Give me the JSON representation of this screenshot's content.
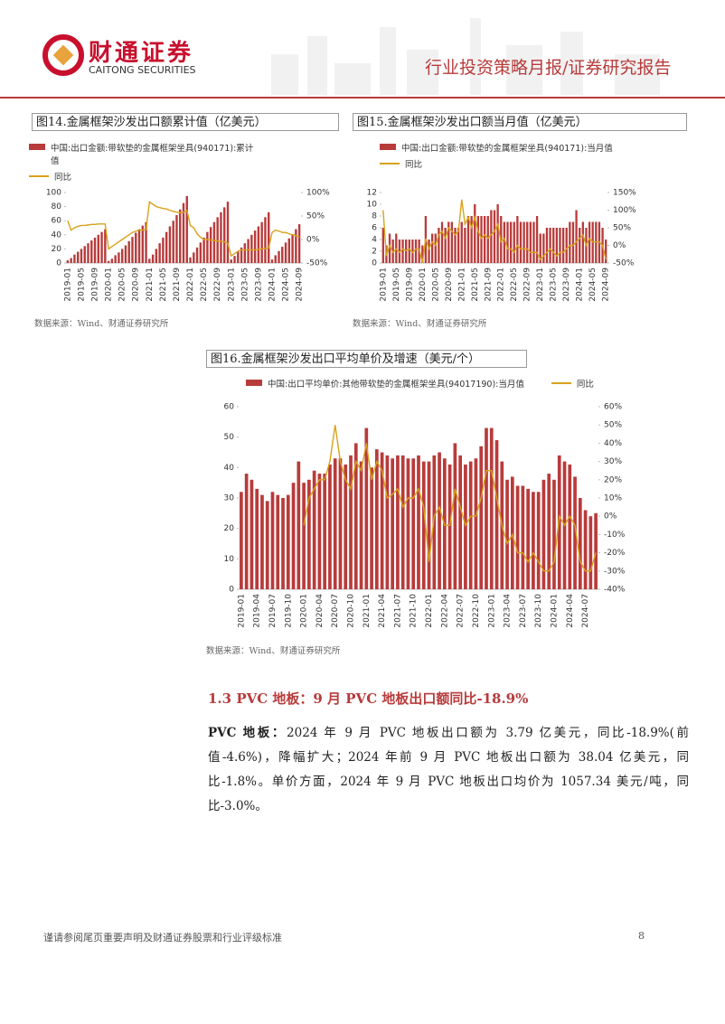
{
  "header": {
    "brand": "财通证券",
    "brand_en": "CAITONG SECURITIES",
    "report_type": "行业投资策略月报/证券研究报告"
  },
  "chart_data": [
    {
      "type": "bar_line",
      "title": "图14.金属框架沙发出口额累计值（亿美元）",
      "source": "数据来源：Wind、财通证券研究所",
      "categories": [
        "2019-01",
        null,
        null,
        null,
        "2019-05",
        null,
        null,
        null,
        "2019-09",
        null,
        null,
        null,
        "2020-01",
        null,
        null,
        null,
        "2020-05",
        null,
        null,
        null,
        "2020-09",
        null,
        null,
        null,
        "2021-01",
        null,
        null,
        null,
        "2021-05",
        null,
        null,
        null,
        "2021-09",
        null,
        null,
        null,
        "2022-01",
        null,
        null,
        null,
        "2022-05",
        null,
        null,
        null,
        "2022-09",
        null,
        null,
        null,
        "2023-01",
        null,
        null,
        null,
        "2023-05",
        null,
        null,
        null,
        "2023-09",
        null,
        null,
        null,
        "2024-01",
        null,
        null,
        null,
        "2024-05",
        null,
        null,
        null,
        "2024-09"
      ],
      "series": [
        {
          "name": "中国:出口金额:带软垫的金属框架坐具(940171):累计值",
          "color": "#b83b3b",
          "values": [
            4,
            7,
            12,
            16,
            20,
            24,
            28,
            32,
            36,
            40,
            44,
            48,
            3,
            6,
            11,
            15,
            20,
            25,
            31,
            37,
            43,
            48,
            53,
            58,
            6,
            12,
            20,
            28,
            36,
            44,
            52,
            60,
            68,
            76,
            85,
            95,
            8,
            15,
            22,
            29,
            36,
            44,
            51,
            58,
            65,
            72,
            79,
            87,
            5,
            10,
            16,
            22,
            28,
            34,
            40,
            46,
            52,
            58,
            65,
            72,
            5,
            11,
            17,
            23,
            29,
            35,
            41,
            48,
            55
          ]
        },
        {
          "name": "同比",
          "color": "#d9a21b",
          "axis": "y2",
          "values": [
            40,
            20,
            25,
            28,
            30,
            30,
            31,
            32,
            32,
            33,
            33,
            33,
            -20,
            -15,
            -10,
            -5,
            0,
            5,
            10,
            15,
            18,
            20,
            20,
            21,
            80,
            75,
            70,
            68,
            66,
            65,
            62,
            60,
            58,
            57,
            58,
            62,
            30,
            25,
            12,
            5,
            0,
            0,
            -1,
            -2,
            -3,
            -4,
            -5,
            -8,
            -35,
            -30,
            -25,
            -22,
            -22,
            -22,
            -22,
            -22,
            -21,
            -20,
            -19,
            -18,
            15,
            20,
            18,
            15,
            15,
            12,
            10,
            8,
            5
          ]
        }
      ],
      "ylim": [
        0,
        100
      ],
      "yticks": [
        0,
        20,
        40,
        60,
        80,
        100
      ],
      "y2lim": [
        -50,
        100
      ],
      "y2ticks": [
        {
          "value": -50,
          "label": "-50%"
        },
        {
          "value": 0,
          "label": "0%"
        },
        {
          "value": 50,
          "label": "50%"
        },
        {
          "value": 100,
          "label": "100%"
        }
      ]
    },
    {
      "type": "bar_line",
      "title": "图15.金属框架沙发出口额当月值（亿美元）",
      "source": "数据来源：Wind、财通证券研究所",
      "categories": [
        "2019-01",
        null,
        null,
        null,
        "2019-05",
        null,
        null,
        null,
        "2019-09",
        null,
        null,
        null,
        "2020-01",
        null,
        null,
        null,
        "2020-05",
        null,
        null,
        null,
        "2020-09",
        null,
        null,
        null,
        "2021-01",
        null,
        null,
        null,
        "2021-05",
        null,
        null,
        null,
        "2021-09",
        null,
        null,
        null,
        "2022-01",
        null,
        null,
        null,
        "2022-05",
        null,
        null,
        null,
        "2022-09",
        null,
        null,
        null,
        "2023-01",
        null,
        null,
        null,
        "2023-05",
        null,
        null,
        null,
        "2023-09",
        null,
        null,
        null,
        "2024-01",
        null,
        null,
        null,
        "2024-05",
        null,
        null,
        null,
        "2024-09"
      ],
      "series": [
        {
          "name": "中国:出口金额:带软垫的金属框架坐具(940171):当月值",
          "color": "#b83b3b",
          "values": [
            6,
            3,
            5,
            4,
            5,
            4,
            4,
            4,
            4,
            4,
            4,
            4,
            3,
            8,
            4,
            5,
            5,
            6,
            7,
            6,
            7,
            7,
            6,
            6,
            7,
            6,
            8,
            8,
            10,
            8,
            8,
            8,
            8,
            9,
            9,
            10,
            8,
            7,
            7,
            7,
            7,
            8,
            7,
            7,
            7,
            7,
            7,
            8,
            5,
            5,
            6,
            6,
            6,
            6,
            6,
            6,
            6,
            7,
            7,
            9,
            6,
            7,
            6,
            7,
            7,
            7,
            7,
            6,
            4
          ]
        },
        {
          "name": "同比",
          "color": "#d9a21b",
          "axis": "y2",
          "values": [
            100,
            -30,
            0,
            -20,
            -10,
            -20,
            -10,
            -15,
            -10,
            -20,
            -10,
            -10,
            -50,
            20,
            -10,
            10,
            0,
            30,
            40,
            20,
            50,
            40,
            30,
            40,
            130,
            60,
            80,
            50,
            80,
            40,
            20,
            30,
            20,
            30,
            40,
            60,
            10,
            20,
            -10,
            -10,
            -20,
            0,
            -10,
            -10,
            -10,
            -20,
            -20,
            -20,
            -40,
            -30,
            -20,
            -10,
            -20,
            -30,
            -20,
            -20,
            -10,
            0,
            0,
            10,
            20,
            30,
            0,
            20,
            10,
            10,
            10,
            0,
            -40
          ]
        }
      ],
      "ylim": [
        0,
        12
      ],
      "yticks": [
        0,
        2,
        4,
        6,
        8,
        10,
        12
      ],
      "y2lim": [
        -50,
        150
      ],
      "y2ticks": [
        {
          "value": -50,
          "label": "-50%"
        },
        {
          "value": 0,
          "label": "0%"
        },
        {
          "value": 50,
          "label": "50%"
        },
        {
          "value": 100,
          "label": "100%"
        },
        {
          "value": 150,
          "label": "150%"
        }
      ]
    },
    {
      "type": "bar_line",
      "title": "图16.金属框架沙发出口平均单价及增速（美元/个）",
      "source": "数据来源：Wind、财通证券研究所",
      "categories": [
        "2019-01",
        null,
        null,
        "2019-04",
        null,
        null,
        "2019-07",
        null,
        null,
        "2019-10",
        null,
        null,
        "2020-01",
        null,
        null,
        "2020-04",
        null,
        null,
        "2020-07",
        null,
        null,
        "2020-10",
        null,
        null,
        "2021-01",
        null,
        null,
        "2021-04",
        null,
        null,
        "2021-07",
        null,
        null,
        "2021-10",
        null,
        null,
        "2022-01",
        null,
        null,
        "2022-04",
        null,
        null,
        "2022-07",
        null,
        null,
        "2022-10",
        null,
        null,
        "2023-01",
        null,
        null,
        "2023-04",
        null,
        null,
        "2023-07",
        null,
        null,
        "2023-10",
        null,
        null,
        "2024-01",
        null,
        null,
        "2024-04",
        null,
        null,
        "2024-07",
        null,
        null
      ],
      "series": [
        {
          "name": "中国:出口平均单价:其他带软垫的金属框架坐具(94017190):当月值",
          "color": "#b83b3b",
          "values": [
            32,
            38,
            36,
            33,
            31,
            29,
            32,
            31,
            30,
            31,
            35,
            42,
            35,
            36,
            39,
            38,
            38,
            41,
            43,
            43,
            41,
            44,
            48,
            42,
            53,
            40,
            46,
            45,
            44,
            43,
            44,
            44,
            43,
            43,
            44,
            42,
            42,
            44,
            45,
            43,
            41,
            48,
            44,
            41,
            42,
            43,
            47,
            53,
            53,
            49,
            42,
            36,
            37,
            34,
            34,
            33,
            32,
            32,
            36,
            38,
            36,
            44,
            42,
            41,
            37,
            30,
            26,
            24,
            25
          ]
        },
        {
          "name": "同比",
          "color": "#d9a21b",
          "axis": "y2",
          "values": [
            null,
            null,
            null,
            null,
            null,
            null,
            null,
            null,
            null,
            null,
            null,
            null,
            -5,
            10,
            15,
            20,
            20,
            30,
            50,
            30,
            20,
            15,
            30,
            25,
            40,
            20,
            30,
            25,
            10,
            12,
            15,
            5,
            10,
            10,
            15,
            5,
            -25,
            0,
            5,
            -5,
            -5,
            15,
            5,
            -5,
            0,
            0,
            10,
            25,
            25,
            10,
            -5,
            -15,
            -10,
            -20,
            -20,
            -25,
            -20,
            -25,
            -30,
            -30,
            -25,
            0,
            -5,
            0,
            -5,
            -25,
            -30,
            -30,
            -20
          ]
        }
      ],
      "ylim": [
        0,
        60
      ],
      "yticks": [
        0,
        10,
        20,
        30,
        40,
        50,
        60
      ],
      "y2lim": [
        -40,
        60
      ],
      "y2ticks": [
        {
          "value": -40,
          "label": "-40%"
        },
        {
          "value": -30,
          "label": "-30%"
        },
        {
          "value": -20,
          "label": "-20%"
        },
        {
          "value": -10,
          "label": "-10%"
        },
        {
          "value": 0,
          "label": "0%"
        },
        {
          "value": 10,
          "label": "10%"
        },
        {
          "value": 20,
          "label": "20%"
        },
        {
          "value": 30,
          "label": "30%"
        },
        {
          "value": 40,
          "label": "40%"
        },
        {
          "value": 50,
          "label": "50%"
        },
        {
          "value": 60,
          "label": "60%"
        }
      ]
    }
  ],
  "section": {
    "heading": "1.3  PVC 地板：9 月 PVC 地板出口额同比-18.9%",
    "lead": "PVC 地板：",
    "body": "2024 年 9 月 PVC 地板出口额为 3.79 亿美元，同比-18.9%(前值-4.6%)，降幅扩大；2024 年前 9 月 PVC 地板出口额为 38.04 亿美元，同比-1.8%。单价方面，2024 年 9 月 PVC 地板出口均价为 1057.34 美元/吨，同比-3.0%。"
  },
  "footer": {
    "disclaimer": "谨请参阅尾页重要声明及财通证券股票和行业评级标准",
    "page": "8"
  }
}
